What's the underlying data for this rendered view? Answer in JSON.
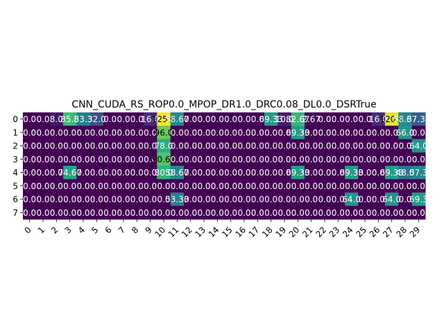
{
  "chart_data": {
    "type": "heatmap",
    "title": "CNN_CUDA_RS_ROP0.0_MPOP_DR1.0_DRC0.08_DL0.0_DSRTrue",
    "x_tick_labels": [
      "0",
      "1",
      "2",
      "3",
      "4",
      "5",
      "6",
      "7",
      "8",
      "9",
      "10",
      "11",
      "12",
      "13",
      "14",
      "15",
      "16",
      "17",
      "18",
      "19",
      "20",
      "21",
      "22",
      "23",
      "24",
      "25",
      "26",
      "27",
      "28",
      "29"
    ],
    "y_tick_labels": [
      "0",
      "1",
      "2",
      "3",
      "4",
      "5",
      "6",
      "7"
    ],
    "colormap": "viridis",
    "vmin": 0,
    "vmax": 125,
    "values": [
      [
        0.0,
        0.0,
        8.0,
        85.8,
        53.3,
        32.0,
        0.0,
        0.0,
        0.0,
        16.0,
        125.0,
        58.67,
        0.0,
        0.0,
        0.0,
        0.0,
        0.0,
        0.0,
        69.33,
        10.0,
        82.67,
        2.67,
        0.0,
        0.0,
        0.0,
        0.0,
        16.0,
        120.0,
        58.67,
        37.33
      ],
      [
        0.0,
        0.0,
        0.0,
        0.0,
        0.0,
        0.0,
        0.0,
        0.0,
        0.0,
        0.0,
        96.0,
        0.0,
        0.0,
        0.0,
        0.0,
        0.0,
        0.0,
        0.0,
        0.0,
        0.0,
        69.33,
        0.0,
        0.0,
        0.0,
        0.0,
        0.0,
        0.0,
        0.0,
        66.0,
        0.0
      ],
      [
        0.0,
        0.0,
        0.0,
        0.0,
        0.0,
        0.0,
        0.0,
        0.0,
        0.0,
        0.0,
        78.0,
        0.0,
        0.0,
        0.0,
        0.0,
        0.0,
        0.0,
        0.0,
        0.0,
        0.0,
        0.0,
        0.0,
        0.0,
        0.0,
        0.0,
        0.0,
        0.0,
        0.0,
        0.0,
        64.0
      ],
      [
        0.0,
        0.0,
        0.0,
        0.0,
        0.0,
        0.0,
        0.0,
        0.0,
        0.0,
        0.0,
        90.67,
        0.0,
        0.0,
        0.0,
        0.0,
        0.0,
        0.0,
        0.0,
        0.0,
        0.0,
        0.0,
        0.0,
        0.0,
        0.0,
        0.0,
        0.0,
        0.0,
        0.0,
        0.0,
        0.0
      ],
      [
        0.0,
        0.0,
        0.0,
        74.67,
        0.0,
        0.0,
        0.0,
        0.0,
        0.0,
        0.0,
        80.0,
        58.67,
        0.0,
        0.0,
        0.0,
        0.0,
        0.0,
        0.0,
        0.0,
        0.0,
        69.33,
        0.0,
        0.0,
        0.0,
        69.33,
        0.0,
        0.0,
        69.33,
        48.0,
        57.3
      ],
      [
        0.0,
        0.0,
        0.0,
        0.0,
        0.0,
        0.0,
        0.0,
        0.0,
        0.0,
        0.0,
        0.0,
        0.0,
        0.0,
        0.0,
        0.0,
        0.0,
        0.0,
        0.0,
        0.0,
        0.0,
        0.0,
        0.0,
        0.0,
        0.0,
        0.0,
        0.0,
        0.0,
        0.0,
        0.0,
        0.0
      ],
      [
        0.0,
        0.0,
        0.0,
        0.0,
        0.0,
        0.0,
        0.0,
        0.0,
        0.0,
        0.0,
        0.0,
        53.33,
        0.0,
        0.0,
        0.0,
        0.0,
        0.0,
        0.0,
        0.0,
        0.0,
        0.0,
        0.0,
        0.0,
        0.0,
        64.0,
        0.0,
        0.0,
        64.0,
        0.0,
        69.3
      ],
      [
        0.0,
        0.0,
        0.0,
        0.0,
        0.0,
        0.0,
        0.0,
        0.0,
        0.0,
        0.0,
        0.0,
        0.0,
        0.0,
        0.0,
        0.0,
        0.0,
        0.0,
        0.0,
        0.0,
        0.0,
        0.0,
        0.0,
        0.0,
        0.0,
        0.0,
        0.0,
        0.0,
        0.0,
        0.0,
        0.0
      ]
    ],
    "cell_labels": [
      [
        "0.0",
        "0.0",
        "8.0",
        "85.8",
        "53.3",
        "32.0",
        "0.0",
        "0.0",
        "0.0",
        "16.0",
        "125.0",
        "58.67",
        "0.0",
        "0.0",
        "0.0",
        "0.0",
        "0.0",
        "0.0",
        "69.33",
        "10.0",
        "82.67",
        "2.67",
        "0.0",
        "0.0",
        "0.0",
        "0.0",
        "16.0",
        "120.0",
        "58.67",
        "37.33"
      ],
      [
        "0.0",
        "0.0",
        "0.0",
        "0.0",
        "0.0",
        "0.0",
        "0.0",
        "0.0",
        "0.0",
        "0.0",
        "96.0",
        "0.0",
        "0.0",
        "0.0",
        "0.0",
        "0.0",
        "0.0",
        "0.0",
        "0.0",
        "0.0",
        "69.33",
        "0.0",
        "0.0",
        "0.0",
        "0.0",
        "0.0",
        "0.0",
        "0.0",
        "66.0",
        "0.0"
      ],
      [
        "0.0",
        "0.0",
        "0.0",
        "0.0",
        "0.0",
        "0.0",
        "0.0",
        "0.0",
        "0.0",
        "0.0",
        "78.0",
        "0.0",
        "0.0",
        "0.0",
        "0.0",
        "0.0",
        "0.0",
        "0.0",
        "0.0",
        "0.0",
        "0.0",
        "0.0",
        "0.0",
        "0.0",
        "0.0",
        "0.0",
        "0.0",
        "0.0",
        "0.0",
        "64.0"
      ],
      [
        "0.0",
        "0.0",
        "0.0",
        "0.0",
        "0.0",
        "0.0",
        "0.0",
        "0.0",
        "0.0",
        "0.0",
        "90.67",
        "0.0",
        "0.0",
        "0.0",
        "0.0",
        "0.0",
        "0.0",
        "0.0",
        "0.0",
        "0.0",
        "0.0",
        "0.0",
        "0.0",
        "0.0",
        "0.0",
        "0.0",
        "0.0",
        "0.0",
        "0.0",
        "0.0"
      ],
      [
        "0.0",
        "0.0",
        "0.0",
        "74.67",
        "0.0",
        "0.0",
        "0.0",
        "0.0",
        "0.0",
        "0.0",
        "80.0",
        "58.67",
        "0.0",
        "0.0",
        "0.0",
        "0.0",
        "0.0",
        "0.0",
        "0.0",
        "0.0",
        "69.33",
        "0.0",
        "0.0",
        "0.0",
        "69.33",
        "0.0",
        "0.0",
        "69.33",
        "48.0",
        "57.3"
      ],
      [
        "0.0",
        "0.0",
        "0.0",
        "0.0",
        "0.0",
        "0.0",
        "0.0",
        "0.0",
        "0.0",
        "0.0",
        "0.0",
        "0.0",
        "0.0",
        "0.0",
        "0.0",
        "0.0",
        "0.0",
        "0.0",
        "0.0",
        "0.0",
        "0.0",
        "0.0",
        "0.0",
        "0.0",
        "0.0",
        "0.0",
        "0.0",
        "0.0",
        "0.0",
        "0.0"
      ],
      [
        "0.0",
        "0.0",
        "0.0",
        "0.0",
        "0.0",
        "0.0",
        "0.0",
        "0.0",
        "0.0",
        "0.0",
        "0.0",
        "53.33",
        "0.0",
        "0.0",
        "0.0",
        "0.0",
        "0.0",
        "0.0",
        "0.0",
        "0.0",
        "0.0",
        "0.0",
        "0.0",
        "0.0",
        "64.0",
        "0.0",
        "0.0",
        "64.0",
        "0.0",
        "69.3"
      ],
      [
        "0.0",
        "0.0",
        "0.0",
        "0.0",
        "0.0",
        "0.0",
        "0.0",
        "0.0",
        "0.0",
        "0.0",
        "0.0",
        "0.0",
        "0.0",
        "0.0",
        "0.0",
        "0.0",
        "0.0",
        "0.0",
        "0.0",
        "0.0",
        "0.0",
        "0.0",
        "0.0",
        "0.0",
        "0.0",
        "0.0",
        "0.0",
        "0.0",
        "0.0",
        "0.0"
      ]
    ],
    "grid": false,
    "legend": "none",
    "x_tick_rotation_deg": 45
  }
}
